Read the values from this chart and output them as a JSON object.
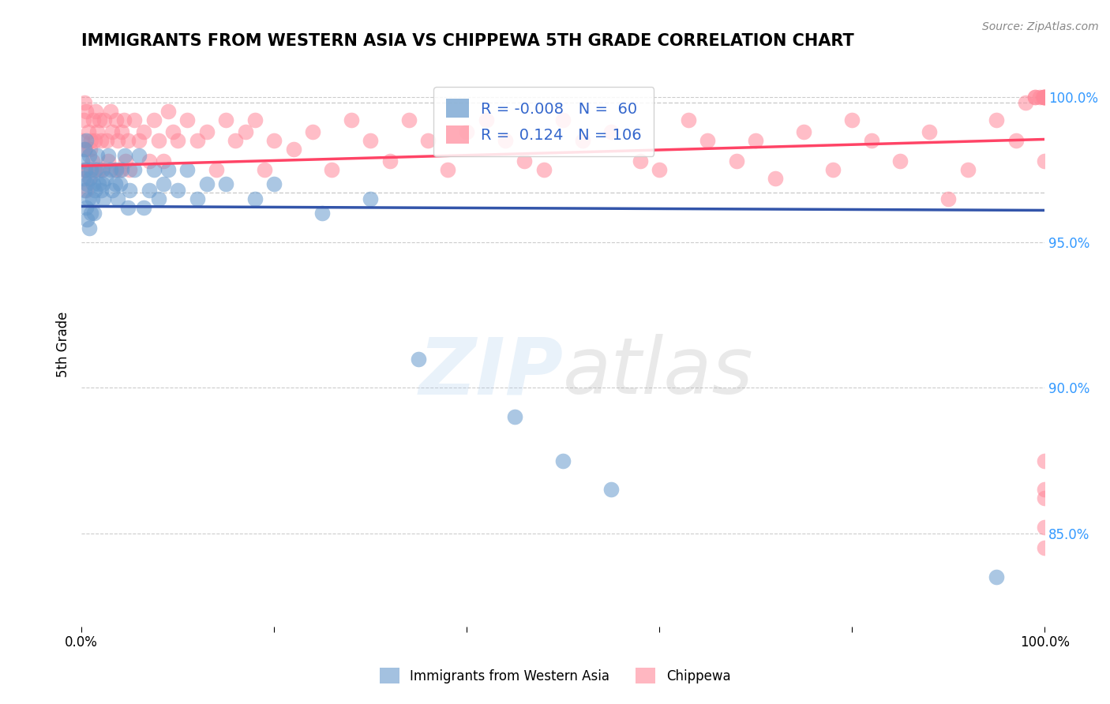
{
  "title": "IMMIGRANTS FROM WESTERN ASIA VS CHIPPEWA 5TH GRADE CORRELATION CHART",
  "source_text": "Source: ZipAtlas.com",
  "xlabel": "",
  "ylabel": "5th Grade",
  "xlim": [
    0.0,
    1.0
  ],
  "ylim": [
    0.818,
    1.012
  ],
  "yticks": [
    0.85,
    0.9,
    0.95,
    1.0
  ],
  "ytick_labels": [
    "85.0%",
    "90.0%",
    "95.0%",
    "100.0%"
  ],
  "xticks": [
    0.0,
    0.2,
    0.4,
    0.6,
    0.8,
    1.0
  ],
  "xtick_labels": [
    "0.0%",
    "",
    "",
    "",
    "",
    "100.0%"
  ],
  "blue_R": -0.008,
  "blue_N": 60,
  "pink_R": 0.124,
  "pink_N": 106,
  "blue_color": "#6699CC",
  "pink_color": "#FF8899",
  "blue_line_color": "#3355AA",
  "pink_line_color": "#FF4466",
  "legend_label_blue": "Immigrants from Western Asia",
  "legend_label_pink": "Chippewa",
  "blue_scatter_x": [
    0.001,
    0.002,
    0.003,
    0.003,
    0.004,
    0.005,
    0.005,
    0.006,
    0.006,
    0.007,
    0.008,
    0.008,
    0.009,
    0.01,
    0.01,
    0.011,
    0.012,
    0.013,
    0.014,
    0.015,
    0.016,
    0.018,
    0.02,
    0.021,
    0.022,
    0.023,
    0.025,
    0.028,
    0.03,
    0.032,
    0.035,
    0.036,
    0.038,
    0.04,
    0.042,
    0.045,
    0.048,
    0.05,
    0.055,
    0.06,
    0.065,
    0.07,
    0.075,
    0.08,
    0.085,
    0.09,
    0.1,
    0.11,
    0.12,
    0.13,
    0.15,
    0.18,
    0.2,
    0.25,
    0.3,
    0.35,
    0.45,
    0.5,
    0.55,
    0.95
  ],
  "blue_scatter_y": [
    0.978,
    0.972,
    0.982,
    0.968,
    0.975,
    0.985,
    0.962,
    0.97,
    0.958,
    0.965,
    0.98,
    0.955,
    0.972,
    0.975,
    0.96,
    0.965,
    0.97,
    0.96,
    0.968,
    0.975,
    0.98,
    0.97,
    0.968,
    0.975,
    0.97,
    0.965,
    0.972,
    0.98,
    0.975,
    0.968,
    0.97,
    0.975,
    0.965,
    0.97,
    0.975,
    0.98,
    0.962,
    0.968,
    0.975,
    0.98,
    0.962,
    0.968,
    0.975,
    0.965,
    0.97,
    0.975,
    0.968,
    0.975,
    0.965,
    0.97,
    0.97,
    0.965,
    0.97,
    0.96,
    0.965,
    0.91,
    0.89,
    0.875,
    0.865,
    0.835
  ],
  "pink_scatter_x": [
    0.001,
    0.002,
    0.003,
    0.003,
    0.004,
    0.005,
    0.005,
    0.006,
    0.007,
    0.008,
    0.009,
    0.01,
    0.011,
    0.012,
    0.013,
    0.014,
    0.015,
    0.016,
    0.018,
    0.019,
    0.02,
    0.022,
    0.024,
    0.026,
    0.028,
    0.03,
    0.032,
    0.034,
    0.036,
    0.038,
    0.04,
    0.042,
    0.044,
    0.046,
    0.048,
    0.05,
    0.055,
    0.06,
    0.065,
    0.07,
    0.075,
    0.08,
    0.085,
    0.09,
    0.095,
    0.1,
    0.11,
    0.12,
    0.13,
    0.14,
    0.15,
    0.16,
    0.17,
    0.18,
    0.19,
    0.2,
    0.22,
    0.24,
    0.26,
    0.28,
    0.3,
    0.32,
    0.34,
    0.36,
    0.38,
    0.4,
    0.42,
    0.44,
    0.46,
    0.48,
    0.5,
    0.52,
    0.55,
    0.58,
    0.6,
    0.63,
    0.65,
    0.68,
    0.7,
    0.72,
    0.75,
    0.78,
    0.8,
    0.82,
    0.85,
    0.88,
    0.9,
    0.92,
    0.95,
    0.97,
    0.98,
    0.99,
    0.99,
    0.995,
    0.998,
    0.999,
    1.0,
    1.0,
    1.0,
    1.0,
    1.0,
    1.0,
    1.0,
    1.0,
    1.0,
    1.0
  ],
  "pink_scatter_y": [
    0.985,
    0.992,
    0.998,
    0.975,
    0.982,
    0.995,
    0.968,
    0.975,
    0.988,
    0.972,
    0.982,
    0.985,
    0.978,
    0.992,
    0.975,
    0.985,
    0.995,
    0.988,
    0.975,
    0.992,
    0.985,
    0.975,
    0.992,
    0.985,
    0.978,
    0.995,
    0.988,
    0.975,
    0.992,
    0.985,
    0.975,
    0.988,
    0.992,
    0.978,
    0.985,
    0.975,
    0.992,
    0.985,
    0.988,
    0.978,
    0.992,
    0.985,
    0.978,
    0.995,
    0.988,
    0.985,
    0.992,
    0.985,
    0.988,
    0.975,
    0.992,
    0.985,
    0.988,
    0.992,
    0.975,
    0.985,
    0.982,
    0.988,
    0.975,
    0.992,
    0.985,
    0.978,
    0.992,
    0.985,
    0.975,
    0.988,
    0.992,
    0.985,
    0.978,
    0.975,
    0.992,
    0.985,
    0.988,
    0.978,
    0.975,
    0.992,
    0.985,
    0.978,
    0.985,
    0.972,
    0.988,
    0.975,
    0.992,
    0.985,
    0.978,
    0.988,
    0.965,
    0.975,
    0.992,
    0.985,
    0.998,
    1.0,
    1.0,
    1.0,
    1.0,
    1.0,
    1.0,
    1.0,
    1.0,
    1.0,
    0.978,
    0.875,
    0.862,
    0.865,
    0.852,
    0.845
  ],
  "watermark": "ZIPatlas",
  "background_color": "#FFFFFF",
  "grid_color": "#CCCCCC",
  "dashed_line_y1": 0.998,
  "dashed_line_y2": 0.967
}
